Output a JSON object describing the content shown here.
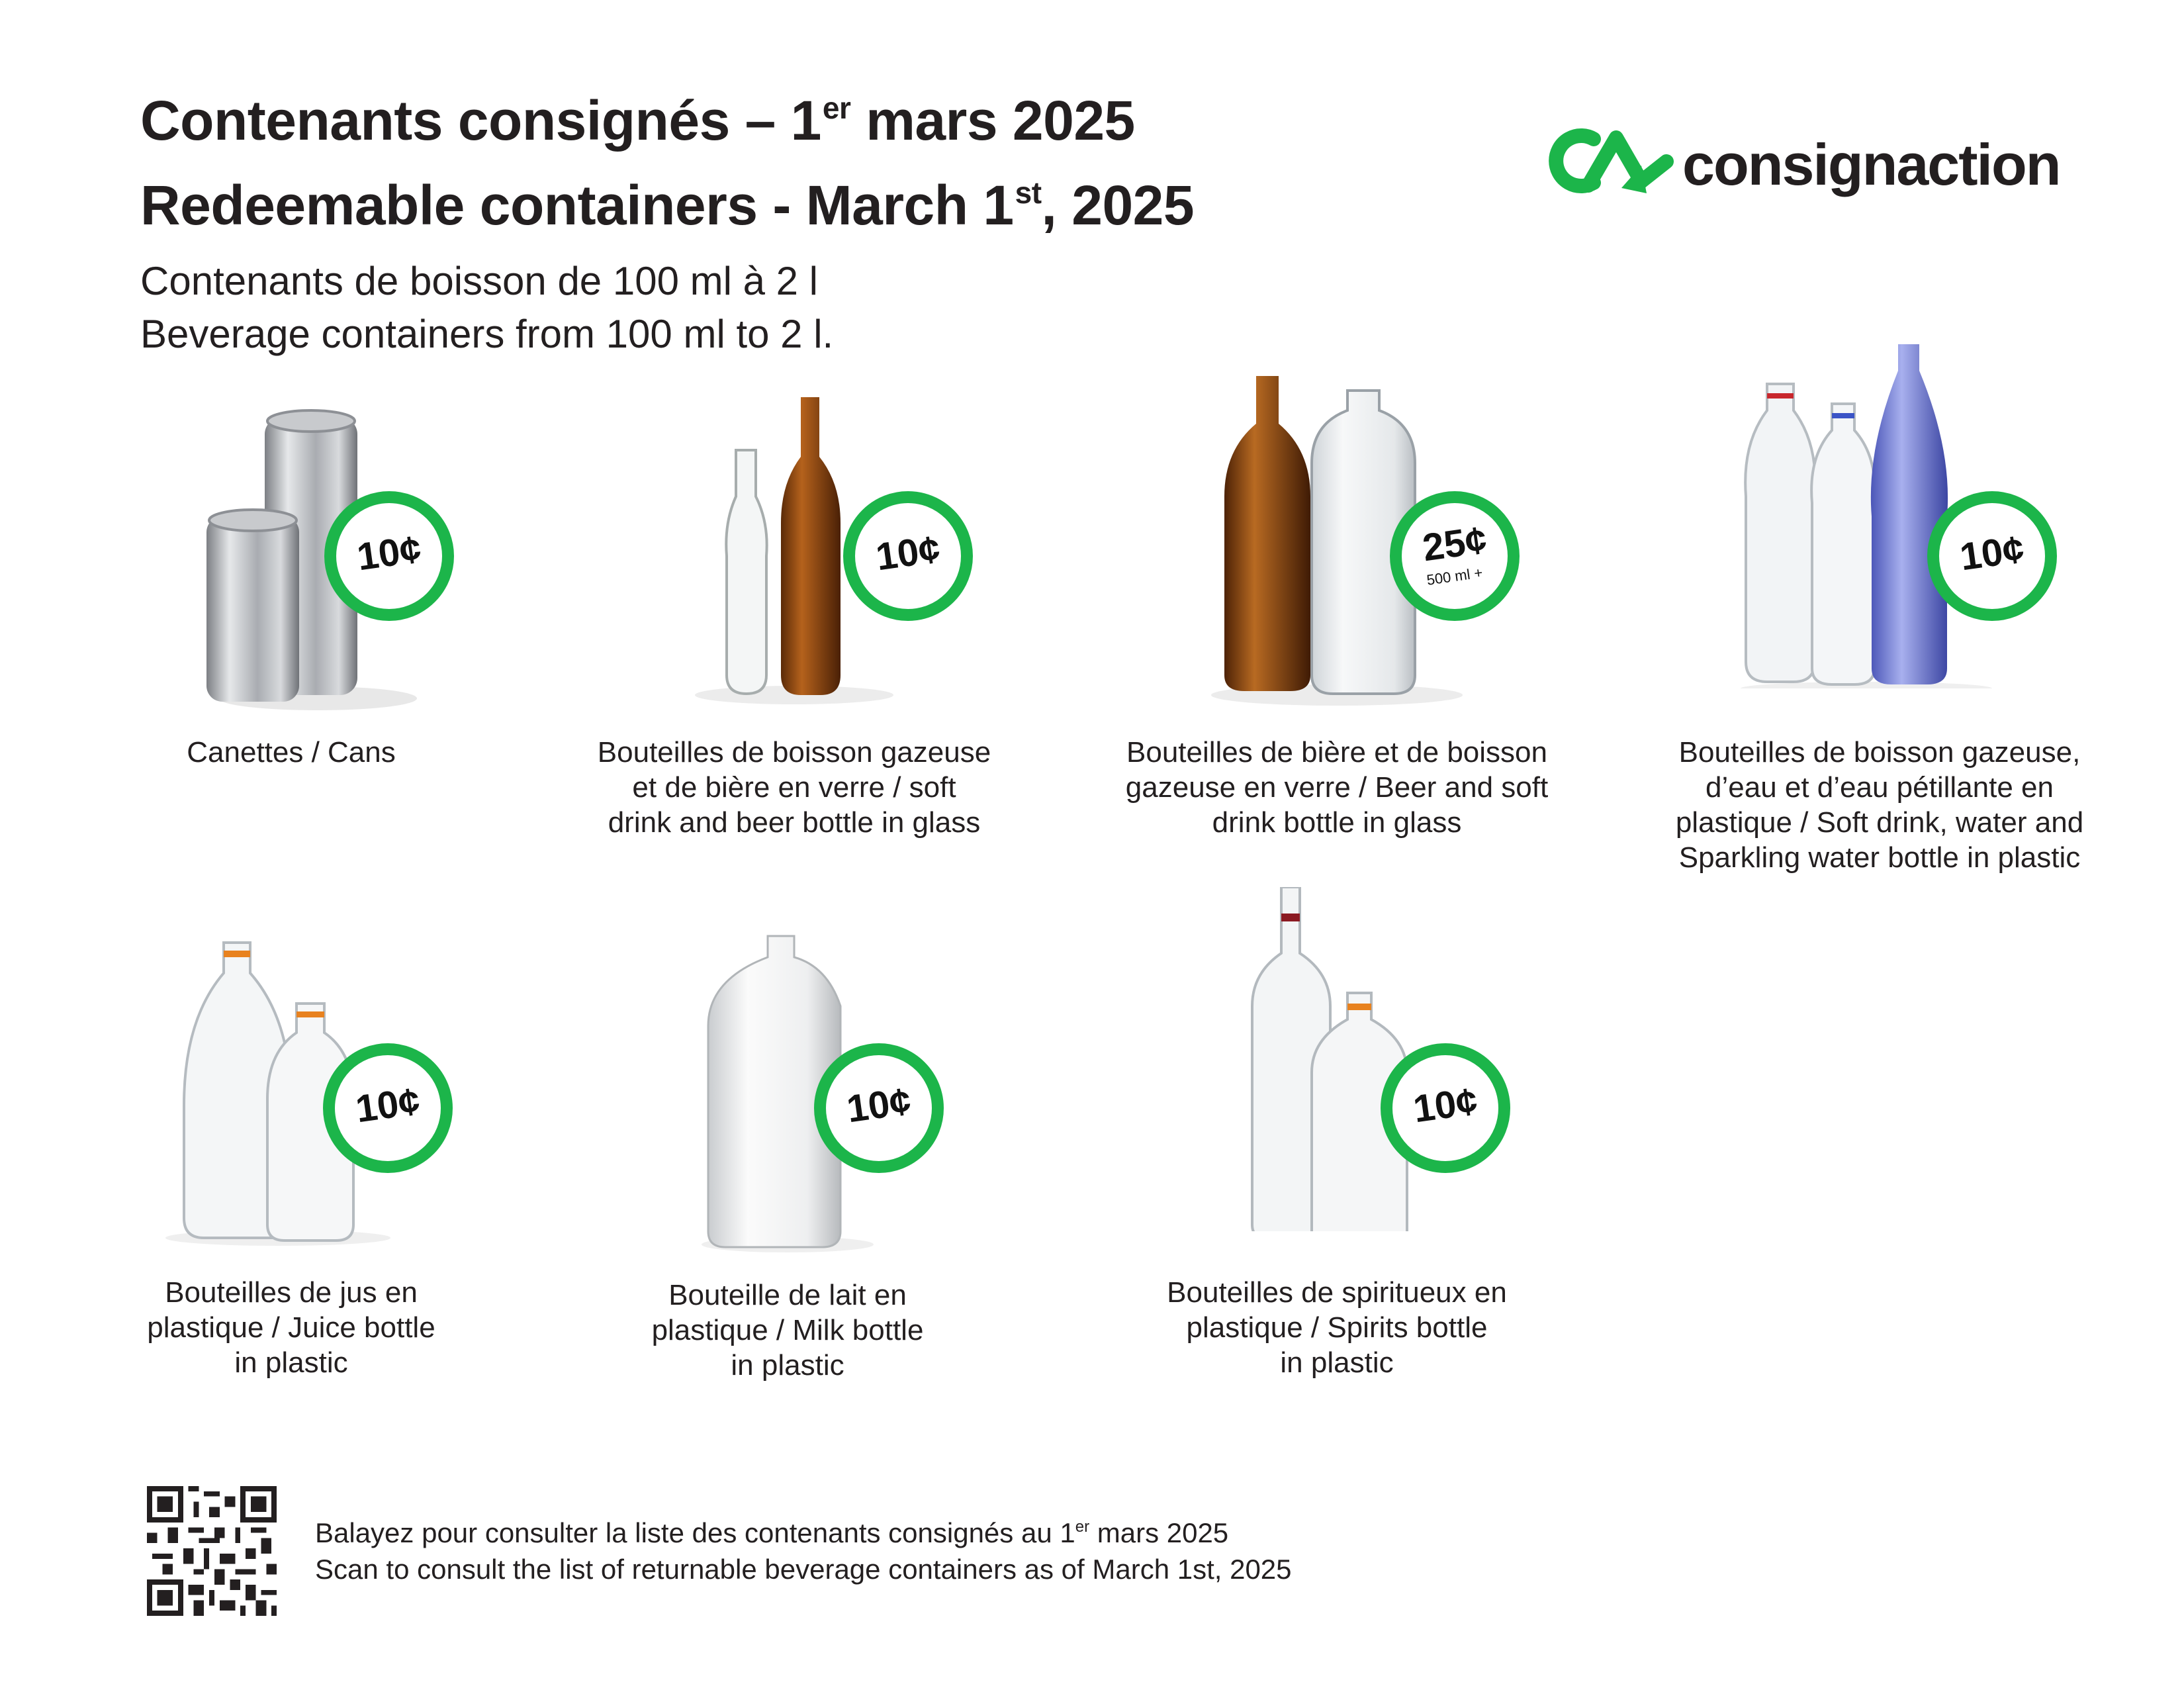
{
  "header": {
    "title_fr_main": "Contenants consignés – 1",
    "title_fr_sup": "er",
    "title_fr_end": " mars 2025",
    "title_en_main": "Redeemable containers - March 1",
    "title_en_sup": "st",
    "title_en_end": ", 2025",
    "subtitle_fr": "Contenants de boisson de 100 ml à 2 l",
    "subtitle_en": "Beverage containers from 100 ml to 2 l."
  },
  "logo": {
    "wordmark": "consignaction",
    "icon": "recycle-ca-icon"
  },
  "colors": {
    "accent_green": "#1cb54a",
    "text": "#231f20"
  },
  "items": [
    {
      "name": "cans",
      "price": "10¢",
      "label": "Canettes / Cans"
    },
    {
      "name": "glass-soft-beer-small",
      "price": "10¢",
      "label": "Bouteilles de boisson gazeuse\net de bière en verre / soft\ndrink and beer bottle in glass"
    },
    {
      "name": "glass-beer-soft-large",
      "price": "25¢",
      "price_note": "500 ml +",
      "label": "Bouteilles de bière et de boisson\ngazeuse en verre / Beer and soft\ndrink bottle in glass"
    },
    {
      "name": "plastic-soft-water",
      "price": "10¢",
      "label": "Bouteilles de boisson gazeuse,\nd’eau et d’eau pétillante en\nplastique / Soft drink, water and\nSparkling water bottle in plastic"
    },
    {
      "name": "plastic-juice",
      "price": "10¢",
      "label": "Bouteilles de jus en\nplastique / Juice bottle\nin plastic"
    },
    {
      "name": "plastic-milk",
      "price": "10¢",
      "label": "Bouteille de lait en\nplastique / Milk bottle\nin plastic"
    },
    {
      "name": "plastic-spirits",
      "price": "10¢",
      "label": "Bouteilles de spiritueux en\nplastique / Spirits bottle\nin plastic"
    }
  ],
  "footer": {
    "qr_icon": "qr-code-icon",
    "scan_fr_main": "Balayez pour consulter la liste des contenants consignés au 1",
    "scan_fr_sup": "er",
    "scan_fr_end": " mars 2025",
    "scan_en": "Scan to consult the list of returnable beverage containers as of March 1st, 2025"
  }
}
